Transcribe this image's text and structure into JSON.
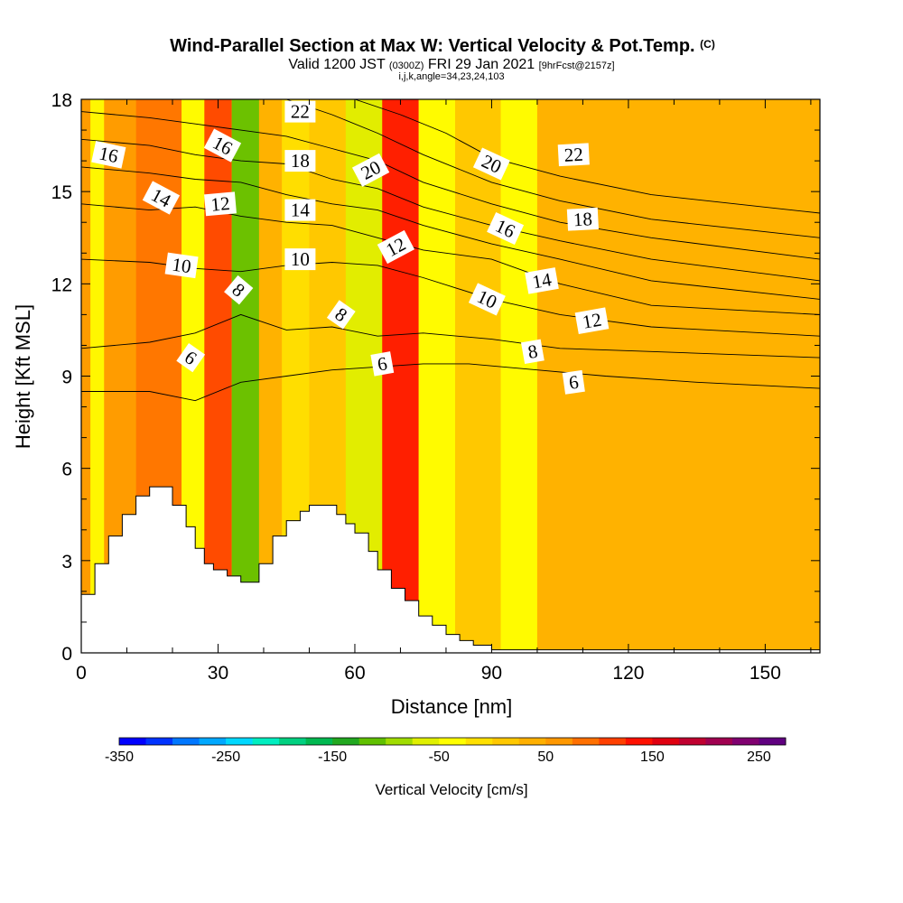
{
  "chart_data": {
    "type": "heatmap",
    "title": "Wind-Parallel Section at Max W: Vertical Velocity & Pot.Temp.",
    "title_suffix": "(C)",
    "subtitle_parts": [
      "Valid 1200 JST",
      "(0300Z)",
      "FRI 29 Jan 2021",
      "[9hrFcst@2157z]"
    ],
    "subtitle_line2": "i,j,k,angle=34,23,24,103",
    "xlabel": "Distance [nm]",
    "ylabel": "Height [Kft MSL]",
    "xlim": [
      0,
      162
    ],
    "ylim": [
      0,
      18
    ],
    "xticks": [
      "0",
      "30",
      "60",
      "90",
      "120",
      "150"
    ],
    "yticks": [
      "0",
      "3",
      "6",
      "9",
      "12",
      "15",
      "18"
    ],
    "colorbar": {
      "label": "Vertical Velocity [cm/s]",
      "range": [
        -350,
        275
      ],
      "ticks": [
        "-350",
        "-250",
        "-150",
        "-50",
        "50",
        "150",
        "250"
      ],
      "colors": [
        "#0000ff",
        "#0033ff",
        "#0077ff",
        "#00a8ff",
        "#00d8ff",
        "#00eec0",
        "#00d080",
        "#00b850",
        "#22a820",
        "#60c000",
        "#a0dc00",
        "#e0f000",
        "#ffff00",
        "#ffe000",
        "#ffc800",
        "#ffb000",
        "#ff9800",
        "#ff7000",
        "#ff4000",
        "#ff1000",
        "#e00010",
        "#c00030",
        "#a00050",
        "#800070",
        "#600080"
      ]
    },
    "velocity_bands": [
      {
        "x": [
          0,
          12
        ],
        "value": 60
      },
      {
        "x": [
          2,
          5
        ],
        "value": -30
      },
      {
        "x": [
          12,
          22
        ],
        "value": 75
      },
      {
        "x": [
          22,
          27
        ],
        "value": -40
      },
      {
        "x": [
          27,
          33
        ],
        "value": 110
      },
      {
        "x": [
          33,
          39
        ],
        "value": -120
      },
      {
        "x": [
          39,
          44
        ],
        "value": 30
      },
      {
        "x": [
          44,
          50
        ],
        "value": -20
      },
      {
        "x": [
          50,
          58
        ],
        "value": 0
      },
      {
        "x": [
          58,
          66
        ],
        "value": -70
      },
      {
        "x": [
          66,
          74
        ],
        "value": 140
      },
      {
        "x": [
          74,
          82
        ],
        "value": -40
      },
      {
        "x": [
          82,
          92
        ],
        "value": 10
      },
      {
        "x": [
          92,
          100
        ],
        "value": -50
      },
      {
        "x": [
          100,
          162
        ],
        "value": 40
      }
    ],
    "terrain": [
      [
        0,
        1.9
      ],
      [
        3,
        1.9
      ],
      [
        3,
        2.9
      ],
      [
        6,
        2.9
      ],
      [
        6,
        3.8
      ],
      [
        9,
        3.8
      ],
      [
        9,
        4.5
      ],
      [
        12,
        4.5
      ],
      [
        12,
        5.1
      ],
      [
        15,
        5.1
      ],
      [
        15,
        5.4
      ],
      [
        20,
        5.4
      ],
      [
        20,
        4.8
      ],
      [
        23,
        4.8
      ],
      [
        23,
        4.1
      ],
      [
        25,
        4.1
      ],
      [
        25,
        3.4
      ],
      [
        27,
        3.4
      ],
      [
        27,
        2.9
      ],
      [
        29,
        2.9
      ],
      [
        29,
        2.7
      ],
      [
        32,
        2.7
      ],
      [
        32,
        2.5
      ],
      [
        35,
        2.5
      ],
      [
        35,
        2.3
      ],
      [
        39,
        2.3
      ],
      [
        39,
        2.9
      ],
      [
        42,
        2.9
      ],
      [
        42,
        3.8
      ],
      [
        45,
        3.8
      ],
      [
        45,
        4.3
      ],
      [
        48,
        4.3
      ],
      [
        48,
        4.6
      ],
      [
        50,
        4.6
      ],
      [
        50,
        4.8
      ],
      [
        56,
        4.8
      ],
      [
        56,
        4.5
      ],
      [
        58,
        4.5
      ],
      [
        58,
        4.2
      ],
      [
        60,
        4.2
      ],
      [
        60,
        3.9
      ],
      [
        63,
        3.9
      ],
      [
        63,
        3.3
      ],
      [
        65,
        3.3
      ],
      [
        65,
        2.7
      ],
      [
        68,
        2.7
      ],
      [
        68,
        2.1
      ],
      [
        71,
        2.1
      ],
      [
        71,
        1.7
      ],
      [
        74,
        1.7
      ],
      [
        74,
        1.2
      ],
      [
        77,
        1.2
      ],
      [
        77,
        0.9
      ],
      [
        80,
        0.9
      ],
      [
        80,
        0.6
      ],
      [
        83,
        0.6
      ],
      [
        83,
        0.4
      ],
      [
        86,
        0.4
      ],
      [
        86,
        0.25
      ],
      [
        90,
        0.25
      ],
      [
        90,
        0.1
      ],
      [
        162,
        0.1
      ]
    ],
    "contours": [
      {
        "label": "6",
        "pts": [
          [
            0,
            8.5
          ],
          [
            15,
            8.5
          ],
          [
            25,
            8.2
          ],
          [
            35,
            8.8
          ],
          [
            45,
            9.0
          ],
          [
            55,
            9.2
          ],
          [
            65,
            9.3
          ],
          [
            75,
            9.4
          ],
          [
            85,
            9.4
          ],
          [
            100,
            9.2
          ],
          [
            115,
            9.0
          ],
          [
            135,
            8.8
          ],
          [
            162,
            8.6
          ]
        ]
      },
      {
        "label": "8",
        "pts": [
          [
            0,
            9.9
          ],
          [
            15,
            10.1
          ],
          [
            25,
            10.4
          ],
          [
            35,
            11.0
          ],
          [
            45,
            10.5
          ],
          [
            55,
            10.6
          ],
          [
            65,
            10.3
          ],
          [
            75,
            10.4
          ],
          [
            90,
            10.2
          ],
          [
            105,
            9.9
          ],
          [
            125,
            9.8
          ],
          [
            162,
            9.6
          ]
        ]
      },
      {
        "label": "10",
        "pts": [
          [
            0,
            12.8
          ],
          [
            15,
            12.7
          ],
          [
            25,
            12.5
          ],
          [
            35,
            12.4
          ],
          [
            45,
            12.6
          ],
          [
            55,
            12.7
          ],
          [
            65,
            12.6
          ],
          [
            75,
            12.2
          ],
          [
            90,
            11.5
          ],
          [
            105,
            11.0
          ],
          [
            125,
            10.6
          ],
          [
            162,
            10.3
          ]
        ]
      },
      {
        "label": "12",
        "pts": [
          [
            0,
            14.6
          ],
          [
            15,
            14.4
          ],
          [
            25,
            14.5
          ],
          [
            35,
            14.2
          ],
          [
            45,
            14.0
          ],
          [
            55,
            13.9
          ],
          [
            65,
            13.5
          ],
          [
            75,
            13.1
          ],
          [
            90,
            12.8
          ],
          [
            105,
            12.0
          ],
          [
            125,
            11.3
          ],
          [
            162,
            11.0
          ]
        ]
      },
      {
        "label": "14",
        "pts": [
          [
            0,
            15.8
          ],
          [
            15,
            15.6
          ],
          [
            25,
            15.4
          ],
          [
            35,
            15.3
          ],
          [
            45,
            14.9
          ],
          [
            55,
            14.6
          ],
          [
            65,
            14.4
          ],
          [
            75,
            13.9
          ],
          [
            90,
            13.3
          ],
          [
            105,
            12.8
          ],
          [
            125,
            12.1
          ],
          [
            162,
            11.5
          ]
        ]
      },
      {
        "label": "16",
        "pts": [
          [
            0,
            16.7
          ],
          [
            15,
            16.5
          ],
          [
            25,
            16.2
          ],
          [
            35,
            16.0
          ],
          [
            45,
            15.9
          ],
          [
            55,
            15.4
          ],
          [
            65,
            15.1
          ],
          [
            75,
            14.5
          ],
          [
            90,
            13.9
          ],
          [
            105,
            13.4
          ],
          [
            125,
            12.8
          ],
          [
            162,
            12.1
          ]
        ]
      },
      {
        "label": "18",
        "pts": [
          [
            0,
            17.6
          ],
          [
            15,
            17.4
          ],
          [
            25,
            17.2
          ],
          [
            35,
            17.0
          ],
          [
            45,
            16.8
          ],
          [
            55,
            16.4
          ],
          [
            65,
            16.0
          ],
          [
            75,
            15.3
          ],
          [
            90,
            14.6
          ],
          [
            105,
            14.0
          ],
          [
            125,
            13.5
          ],
          [
            162,
            12.8
          ]
        ]
      },
      {
        "label": "20",
        "pts": [
          [
            45,
            18.0
          ],
          [
            55,
            17.5
          ],
          [
            65,
            16.9
          ],
          [
            75,
            16.2
          ],
          [
            90,
            15.3
          ],
          [
            105,
            14.7
          ],
          [
            125,
            14.1
          ],
          [
            162,
            13.5
          ]
        ]
      },
      {
        "label": "22",
        "pts": [
          [
            60,
            18.0
          ],
          [
            70,
            17.5
          ],
          [
            80,
            16.9
          ],
          [
            90,
            16.1
          ],
          [
            105,
            15.5
          ],
          [
            125,
            14.9
          ],
          [
            162,
            14.3
          ]
        ]
      }
    ],
    "contour_labels": [
      {
        "text": "16",
        "x": 6,
        "y": 16.2,
        "rot": 12
      },
      {
        "text": "14",
        "x": 17.5,
        "y": 14.8,
        "rot": 28
      },
      {
        "text": "10",
        "x": 22,
        "y": 12.6,
        "rot": 8
      },
      {
        "text": "6",
        "x": 24,
        "y": 9.6,
        "rot": 35
      },
      {
        "text": "16",
        "x": 31,
        "y": 16.5,
        "rot": 28
      },
      {
        "text": "12",
        "x": 30.5,
        "y": 14.6,
        "rot": -5
      },
      {
        "text": "8",
        "x": 34.5,
        "y": 11.8,
        "rot": 40
      },
      {
        "text": "22",
        "x": 48,
        "y": 17.6,
        "rot": 0
      },
      {
        "text": "18",
        "x": 48,
        "y": 16.0,
        "rot": 0
      },
      {
        "text": "14",
        "x": 48,
        "y": 14.4,
        "rot": 0
      },
      {
        "text": "10",
        "x": 48,
        "y": 12.8,
        "rot": 0
      },
      {
        "text": "8",
        "x": 57,
        "y": 11.0,
        "rot": 35
      },
      {
        "text": "20",
        "x": 63.5,
        "y": 15.7,
        "rot": -28
      },
      {
        "text": "12",
        "x": 69,
        "y": 13.2,
        "rot": -28
      },
      {
        "text": "6",
        "x": 66,
        "y": 9.4,
        "rot": -10
      },
      {
        "text": "20",
        "x": 90,
        "y": 15.9,
        "rot": 25
      },
      {
        "text": "16",
        "x": 93,
        "y": 13.8,
        "rot": 25
      },
      {
        "text": "10",
        "x": 89,
        "y": 11.5,
        "rot": 25
      },
      {
        "text": "22",
        "x": 108,
        "y": 16.2,
        "rot": -3
      },
      {
        "text": "18",
        "x": 110,
        "y": 14.1,
        "rot": -3
      },
      {
        "text": "14",
        "x": 101,
        "y": 12.1,
        "rot": -10
      },
      {
        "text": "12",
        "x": 112,
        "y": 10.8,
        "rot": -10
      },
      {
        "text": "8",
        "x": 99,
        "y": 9.8,
        "rot": -10
      },
      {
        "text": "6",
        "x": 108,
        "y": 8.8,
        "rot": -8
      }
    ]
  }
}
